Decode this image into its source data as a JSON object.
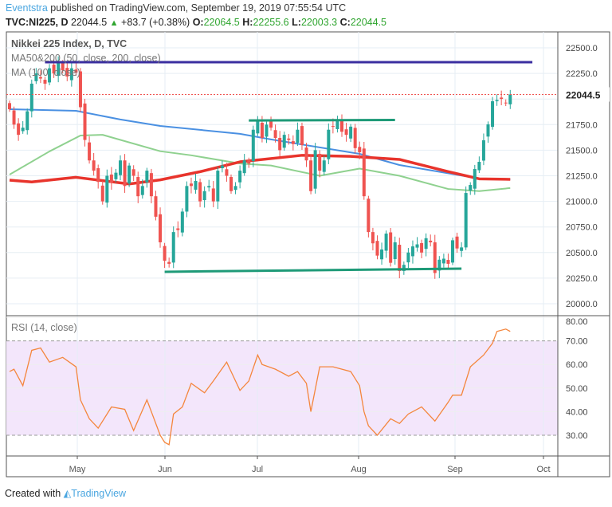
{
  "header": {
    "author": "Eventstra",
    "published": "published on TradingView.com, September 19, 2019 07:55:54 UTC",
    "symbol": "TVC:NI225, D",
    "last": "22044.5",
    "change": "+83.7 (+0.38%)",
    "o_label": "O:",
    "o": "22064.5",
    "h_label": "H:",
    "h": "22255.6",
    "l_label": "L:",
    "l": "22003.3",
    "c_label": "C:",
    "c": "22044.5"
  },
  "footer": {
    "created": "Created with",
    "brand": "TradingView"
  },
  "colors": {
    "up": "#26a69a",
    "down": "#ef5350",
    "ma50": "#8fd18f",
    "ma100": "#4a90e2",
    "ma200": "#e8342c",
    "level": "#1e9a78",
    "resistance": "#3b2fa0",
    "rsi": "#f4863d",
    "rsi_band": "#f3e6fb"
  },
  "chart_data": [
    {
      "type": "candlestick",
      "title": "Nikkei 225 Index, D, TVC",
      "legend": [
        "MA50&200 (50, close, 200, close)",
        "MA (100, close)"
      ],
      "ylim": [
        19850,
        22600
      ],
      "yticks": [
        20000,
        20250,
        20500,
        20750,
        21000,
        21250,
        21500,
        21750,
        22000,
        22250,
        22500
      ],
      "last_price_label": "22044.5",
      "closes": [
        21900,
        21750,
        21650,
        21720,
        21880,
        22150,
        22250,
        22200,
        22150,
        22300,
        22250,
        22350,
        22280,
        22220,
        22300,
        22258,
        21920,
        21600,
        21400,
        21300,
        21190,
        21000,
        21250,
        21180,
        21280,
        21400,
        21150,
        21350,
        21250,
        21050,
        21150,
        21300,
        21050,
        20850,
        20600,
        20420,
        20390,
        20700,
        20720,
        20900,
        21150,
        21150,
        21200,
        21000,
        21100,
        21150,
        21000,
        21300,
        21350,
        21250,
        21100,
        21150,
        21300,
        21400,
        21370,
        21700,
        21780,
        21620,
        21750,
        21720,
        21620,
        21500,
        21650,
        21600,
        21560,
        21700,
        21550,
        21400,
        21100,
        21500,
        21300,
        21400,
        21700,
        21730,
        21800,
        21680,
        21650,
        21730,
        21520,
        21480,
        21050,
        20700,
        20590,
        20470,
        20530,
        20685,
        20400,
        20600,
        20320,
        20380,
        20500,
        20560,
        20580,
        20500,
        20640,
        20600,
        20300,
        20430,
        20440,
        20390,
        20620,
        20540,
        20550,
        21082,
        21160,
        21316,
        21386,
        21597,
        21752,
        21978,
        21990,
        22001,
        21960,
        22044.5
      ],
      "ma100": [
        [
          0,
          21900
        ],
        [
          15,
          21885
        ],
        [
          25,
          21800
        ],
        [
          34,
          21737
        ],
        [
          52,
          21660
        ],
        [
          59,
          21605
        ],
        [
          79,
          21464
        ],
        [
          88,
          21355
        ],
        [
          106,
          21223
        ],
        [
          113,
          21215
        ]
      ],
      "ma50": [
        [
          0,
          21262
        ],
        [
          9,
          21488
        ],
        [
          16,
          21643
        ],
        [
          21,
          21650
        ],
        [
          34,
          21490
        ],
        [
          41,
          21450
        ],
        [
          52,
          21370
        ],
        [
          59,
          21350
        ],
        [
          70,
          21250
        ],
        [
          79,
          21320
        ],
        [
          88,
          21250
        ],
        [
          99,
          21121
        ],
        [
          106,
          21100
        ],
        [
          113,
          21130
        ]
      ],
      "ma200": [
        [
          0,
          21207
        ],
        [
          5,
          21190
        ],
        [
          15,
          21235
        ],
        [
          27,
          21170
        ],
        [
          34,
          21210
        ],
        [
          43,
          21290
        ],
        [
          52,
          21386
        ],
        [
          66,
          21450
        ],
        [
          77,
          21440
        ],
        [
          88,
          21410
        ],
        [
          99,
          21290
        ],
        [
          106,
          21220
        ],
        [
          113,
          21215
        ]
      ],
      "lines": [
        {
          "name": "resistance",
          "from": [
            8,
            22360
          ],
          "to": [
            118,
            22360
          ]
        },
        {
          "name": "range-top",
          "from": [
            54,
            21790
          ],
          "to": [
            87,
            21795
          ]
        },
        {
          "name": "range-bottom",
          "from": [
            35,
            20312
          ],
          "to": [
            102,
            20343
          ]
        }
      ]
    },
    {
      "type": "line",
      "title": "RSI (14, close)",
      "ylim": [
        22,
        80
      ],
      "yticks": [
        30,
        40,
        50,
        60,
        70,
        80
      ],
      "band": [
        30,
        70
      ],
      "points": [
        [
          0,
          57
        ],
        [
          1,
          58
        ],
        [
          3,
          51
        ],
        [
          5,
          66
        ],
        [
          7,
          67
        ],
        [
          9,
          61
        ],
        [
          12,
          63
        ],
        [
          15,
          59
        ],
        [
          16,
          45
        ],
        [
          18,
          37
        ],
        [
          20,
          33
        ],
        [
          23,
          42
        ],
        [
          26,
          41
        ],
        [
          28,
          32
        ],
        [
          31,
          45
        ],
        [
          34,
          30
        ],
        [
          35,
          27
        ],
        [
          36,
          26
        ],
        [
          37,
          39
        ],
        [
          39,
          42
        ],
        [
          41,
          52
        ],
        [
          44,
          48
        ],
        [
          46,
          53
        ],
        [
          49,
          61
        ],
        [
          52,
          49
        ],
        [
          54,
          53
        ],
        [
          56,
          64
        ],
        [
          57,
          60
        ],
        [
          60,
          58
        ],
        [
          63,
          55
        ],
        [
          65,
          57
        ],
        [
          67,
          52
        ],
        [
          68,
          40
        ],
        [
          70,
          59
        ],
        [
          73,
          59
        ],
        [
          77,
          57
        ],
        [
          79,
          51
        ],
        [
          80,
          40
        ],
        [
          81,
          34
        ],
        [
          83,
          30
        ],
        [
          86,
          37
        ],
        [
          88,
          35
        ],
        [
          90,
          39
        ],
        [
          93,
          42
        ],
        [
          96,
          36
        ],
        [
          99,
          44
        ],
        [
          100,
          47
        ],
        [
          102,
          47
        ],
        [
          104,
          59
        ],
        [
          107,
          64
        ],
        [
          109,
          69
        ],
        [
          110,
          74
        ],
        [
          112,
          75
        ],
        [
          113,
          74
        ]
      ]
    },
    {
      "xticks": [
        "May",
        "Jun",
        "Jul",
        "Aug",
        "Sep",
        "Oct"
      ]
    }
  ]
}
